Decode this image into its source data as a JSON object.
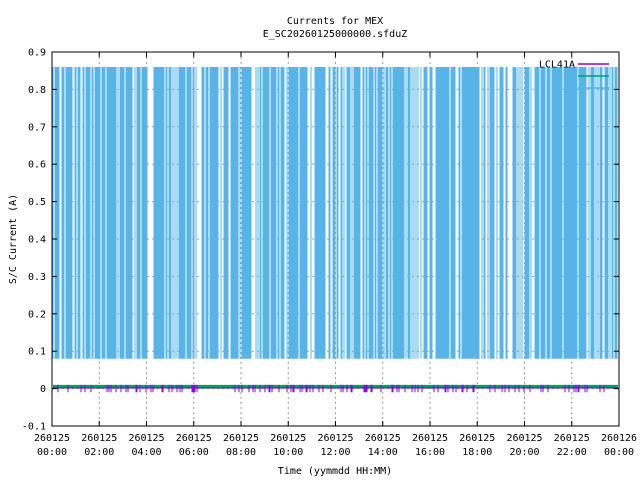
{
  "chart_data": {
    "type": "line",
    "title": "Currents for MEX",
    "subtitle": "E_SC20260125000000.sfduZ",
    "xlabel": "Time (yymmdd HH:MM)",
    "ylabel": "S/C Current (A)",
    "ylim": [
      -0.1,
      0.9
    ],
    "yticks": [
      "-0.1",
      "0",
      "0.1",
      "0.2",
      "0.3",
      "0.4",
      "0.5",
      "0.6",
      "0.7",
      "0.8",
      "0.9"
    ],
    "xlim_hours": [
      0,
      24
    ],
    "xticks": [
      {
        "date": "260125",
        "time": "00:00"
      },
      {
        "date": "260125",
        "time": "02:00"
      },
      {
        "date": "260125",
        "time": "04:00"
      },
      {
        "date": "260125",
        "time": "06:00"
      },
      {
        "date": "260125",
        "time": "08:00"
      },
      {
        "date": "260125",
        "time": "10:00"
      },
      {
        "date": "260125",
        "time": "12:00"
      },
      {
        "date": "260125",
        "time": "14:00"
      },
      {
        "date": "260125",
        "time": "16:00"
      },
      {
        "date": "260125",
        "time": "18:00"
      },
      {
        "date": "260125",
        "time": "20:00"
      },
      {
        "date": "260125",
        "time": "22:00"
      },
      {
        "date": "260126",
        "time": "00:00"
      }
    ],
    "grid": true,
    "legend_position": "top-right",
    "series": [
      {
        "name": "LCL41A",
        "color": "#9400d3",
        "pattern": "near-zero with short dips",
        "high": 0.01,
        "low": -0.01
      },
      {
        "name": "",
        "color": "#009e73",
        "pattern": "near-zero",
        "high": 0.01,
        "low": 0.0
      },
      {
        "name": "",
        "color": "#56b4e9",
        "pattern": "rapid pulses between low and high",
        "high": 0.86,
        "low": 0.08
      }
    ]
  }
}
